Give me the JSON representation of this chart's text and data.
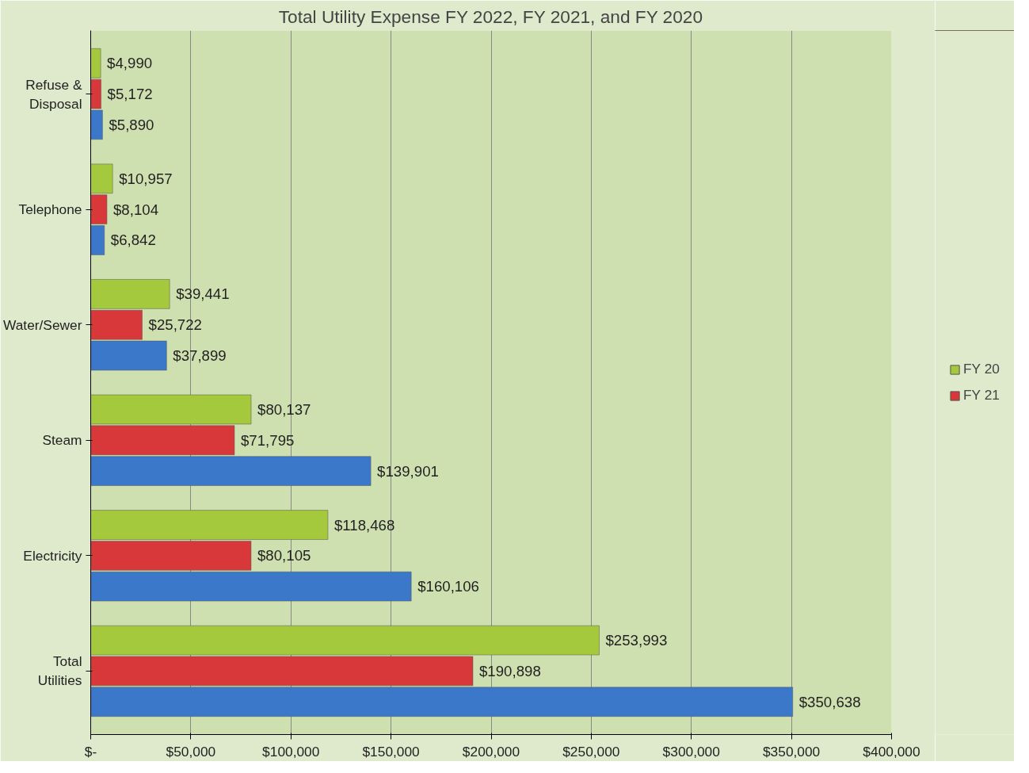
{
  "chart_data": {
    "type": "bar",
    "orientation": "horizontal",
    "title": "Total Utility Expense FY 2022, FY 2021, and FY 2020",
    "categories": [
      "Refuse & Disposal",
      "Telephone",
      "Water/Sewer",
      "Steam",
      "Electricity",
      "Total Utilities"
    ],
    "series": [
      {
        "name": "FY 20",
        "color": "#a4c93c",
        "values": [
          4990,
          10957,
          39441,
          80137,
          118468,
          253993
        ],
        "value_labels": [
          "$4,990",
          "$10,957",
          "$39,441",
          "$80,137",
          "$118,468",
          "$253,993"
        ]
      },
      {
        "name": "FY 21",
        "color": "#d9383a",
        "values": [
          5172,
          8104,
          25722,
          71795,
          80105,
          190898
        ],
        "value_labels": [
          "$5,172",
          "$8,104",
          "$25,722",
          "$71,795",
          "$80,105",
          "$190,898"
        ]
      },
      {
        "color": "#3b78c9",
        "values": [
          5890,
          6842,
          37899,
          139901,
          160106,
          350638
        ],
        "value_labels": [
          "$5,890",
          "$6,842",
          "$37,899",
          "$139,901",
          "$160,106",
          "$350,638"
        ]
      }
    ],
    "xlim": [
      0,
      400000
    ],
    "xticks": [
      {
        "value": 0,
        "label": "$-"
      },
      {
        "value": 50000,
        "label": "$50,000"
      },
      {
        "value": 100000,
        "label": "$100,000"
      },
      {
        "value": 150000,
        "label": "$150,000"
      },
      {
        "value": 200000,
        "label": "$200,000"
      },
      {
        "value": 250000,
        "label": "$250,000"
      },
      {
        "value": 300000,
        "label": "$300,000"
      },
      {
        "value": 350000,
        "label": "$350,000"
      },
      {
        "value": 400000,
        "label": "$400,000"
      }
    ],
    "grid": "x",
    "legend": "right"
  }
}
